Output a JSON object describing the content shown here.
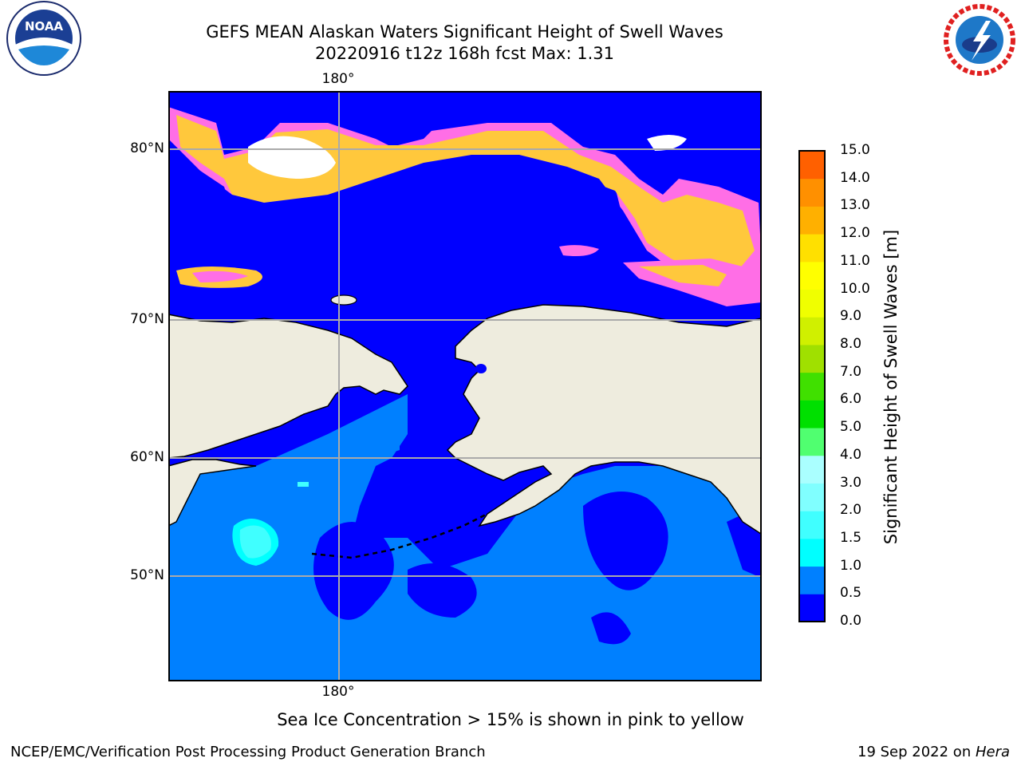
{
  "title": {
    "line1": "GEFS MEAN Alaskan Waters Significant Height of Swell Waves",
    "line2": "20220916 t12z 168h fcst   Max: 1.31"
  },
  "map": {
    "lon_label_top": "180°",
    "lon_label_bottom": "180°",
    "lat_labels": [
      "80°N",
      "70°N",
      "60°N",
      "50°N"
    ],
    "colors": {
      "water_low": "#0000ff",
      "water_mid": "#0080ff",
      "land": "#eeecde",
      "ice_pink": "#ff6ee6",
      "ice_yellow": "#ffc83c",
      "cyan": "#00ffff"
    }
  },
  "colorbar": {
    "label": "Significant Height of Swell Waves [m]",
    "ticks": [
      "15.0",
      "14.0",
      "13.0",
      "12.0",
      "11.0",
      "10.0",
      "9.0",
      "8.0",
      "7.0",
      "6.0",
      "5.0",
      "4.0",
      "3.0",
      "2.0",
      "1.5",
      "1.0",
      "0.5",
      "0.0"
    ],
    "colors": [
      "#0000ff",
      "#0080ff",
      "#00ffff",
      "#40ffff",
      "#80ffff",
      "#aaffff",
      "#50ff70",
      "#00e000",
      "#40e000",
      "#a0e000",
      "#d0f000",
      "#f0ff00",
      "#ffff00",
      "#ffe000",
      "#ffb000",
      "#ff9000",
      "#ff6000",
      "#ff3000",
      "#ff0000"
    ]
  },
  "note": "Sea Ice Concentration > 15% is shown in pink to yellow",
  "footer": {
    "left": "NCEP/EMC/Verification Post Processing Product Generation Branch",
    "right_prefix": "19 Sep 2022 on ",
    "right_host": "Hera"
  },
  "logos": {
    "noaa": "NOAA",
    "nws": "NATIONAL WEATHER SERVICE"
  }
}
